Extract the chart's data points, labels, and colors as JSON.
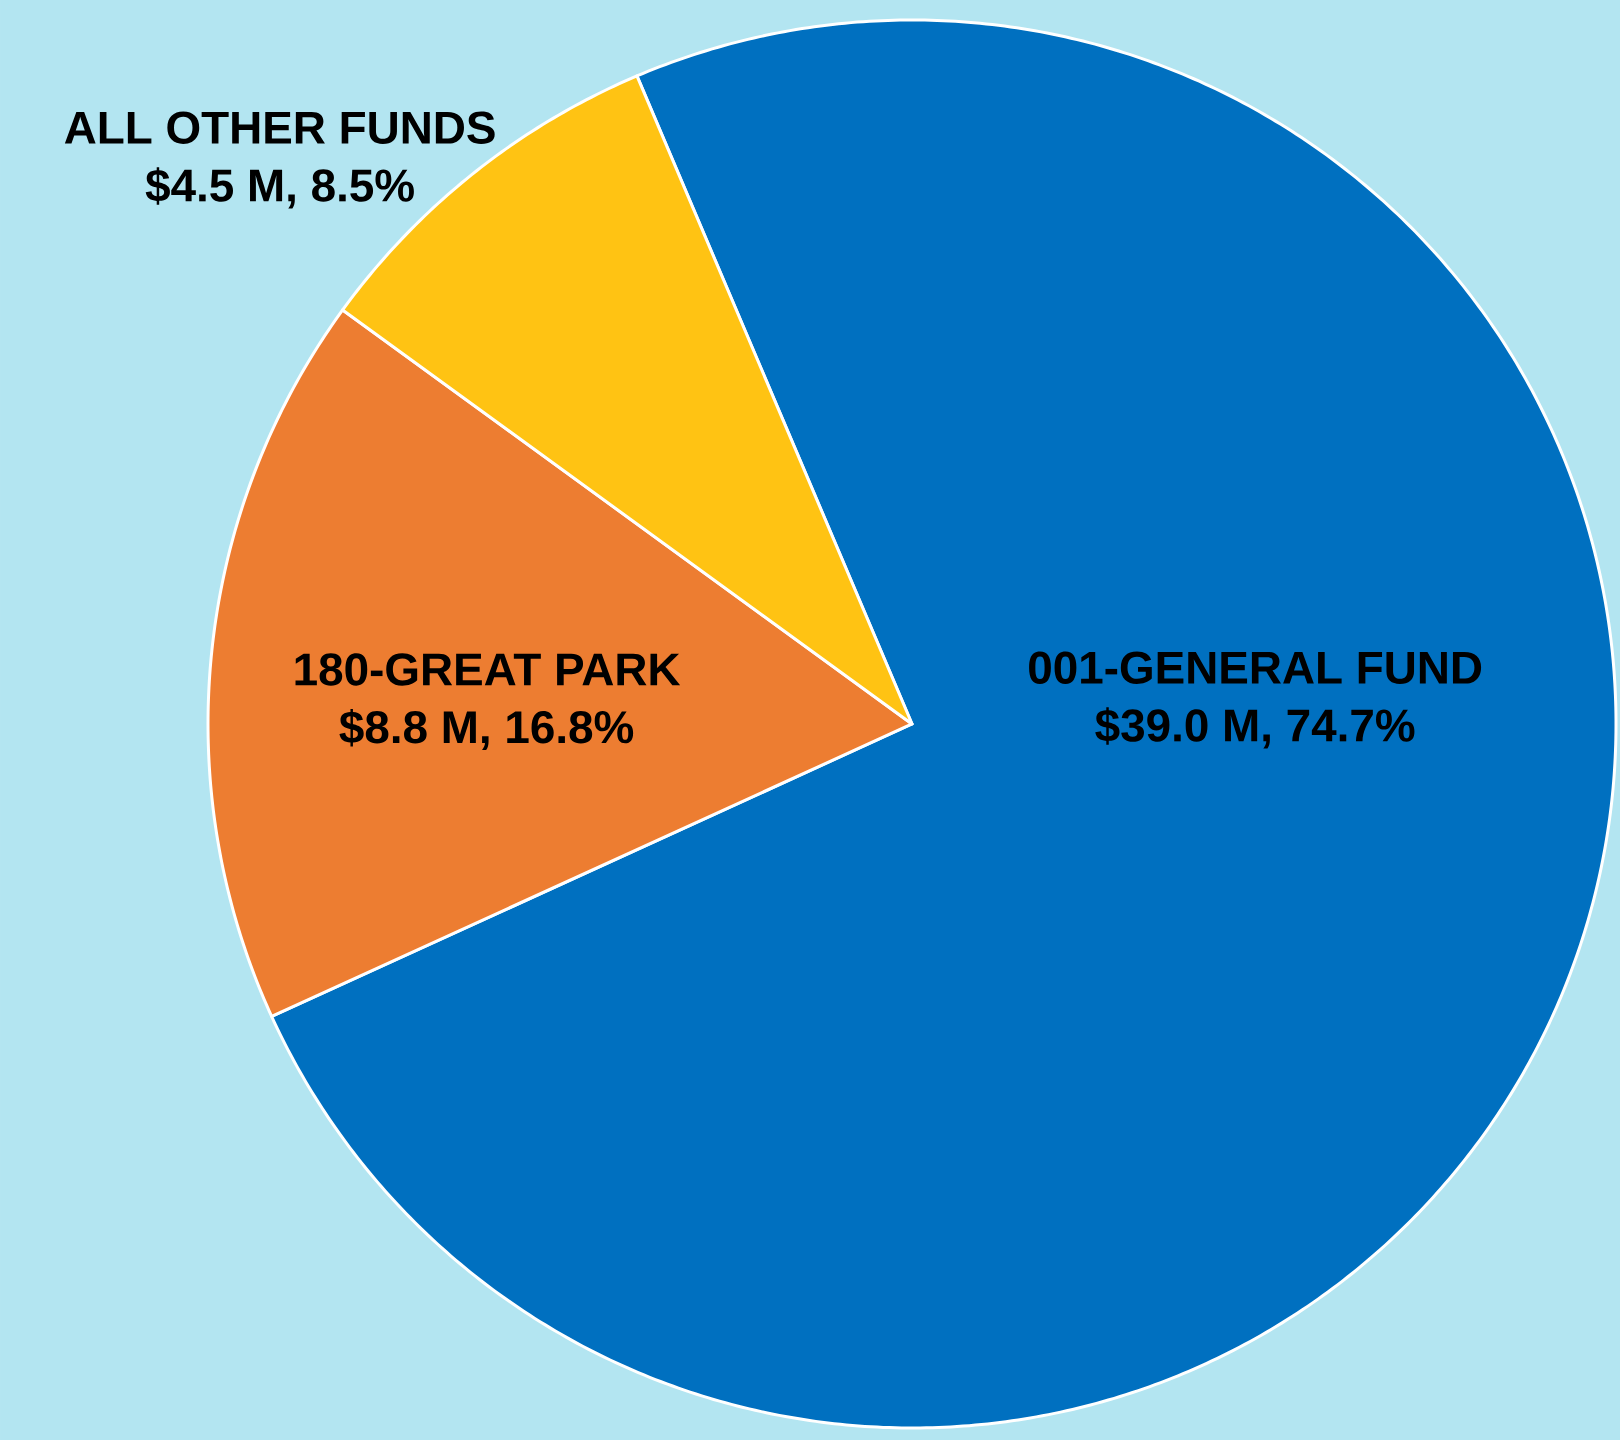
{
  "chart_data": {
    "type": "pie",
    "categories": [
      "001-GENERAL FUND",
      "180-GREAT PARK",
      "ALL OTHER FUNDS"
    ],
    "values": [
      39.0,
      8.8,
      4.5
    ],
    "colors": [
      "#0070c0",
      "#ed7d31",
      "#ffc313"
    ],
    "value_labels": [
      "$39.0 M, 74.7%",
      "$8.8 M, 16.8%",
      "$4.5 M, 8.5%"
    ]
  }
}
